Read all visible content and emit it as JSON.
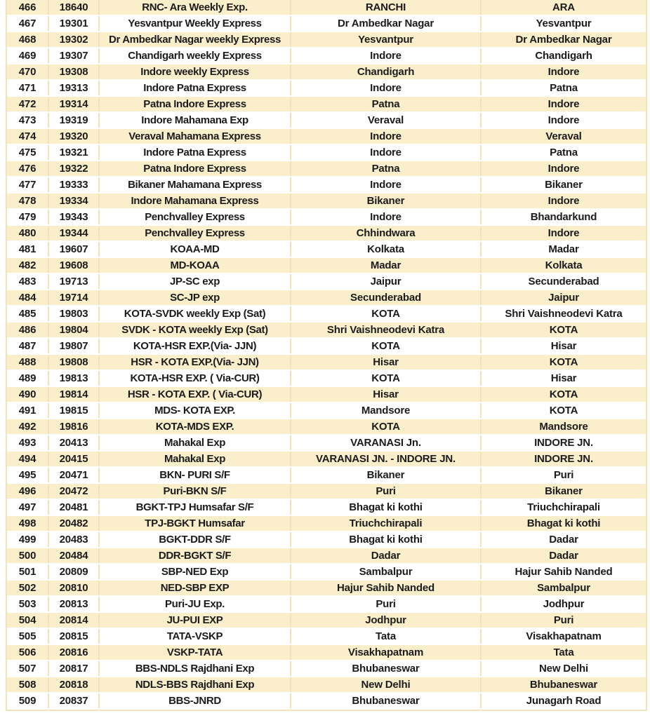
{
  "colors": {
    "row_highlight": "#FBEECB",
    "row_plain": "#FFFFFF",
    "grid_line": "#EFE3BC",
    "text": "#1B1B1B"
  },
  "table": {
    "rows": [
      [
        "466",
        "18640",
        "RNC- Ara Weekly Exp.",
        "RANCHI",
        "ARA"
      ],
      [
        "467",
        "19301",
        "Yesvantpur Weekly Express",
        "Dr Ambedkar Nagar",
        "Yesvantpur"
      ],
      [
        "468",
        "19302",
        "Dr Ambedkar Nagar weekly Express",
        "Yesvantpur",
        "Dr Ambedkar Nagar"
      ],
      [
        "469",
        "19307",
        "Chandigarh weekly Express",
        "Indore",
        "Chandigarh"
      ],
      [
        "470",
        "19308",
        "Indore weekly Express",
        "Chandigarh",
        "Indore"
      ],
      [
        "471",
        "19313",
        "Indore Patna Express",
        "Indore",
        "Patna"
      ],
      [
        "472",
        "19314",
        "Patna Indore Express",
        "Patna",
        "Indore"
      ],
      [
        "473",
        "19319",
        "Indore Mahamana Exp",
        "Veraval",
        "Indore"
      ],
      [
        "474",
        "19320",
        "Veraval Mahamana Express",
        "Indore",
        "Veraval"
      ],
      [
        "475",
        "19321",
        "Indore Patna Express",
        "Indore",
        "Patna"
      ],
      [
        "476",
        "19322",
        "Patna Indore Express",
        "Patna",
        "Indore"
      ],
      [
        "477",
        "19333",
        "Bikaner Mahamana Express",
        "Indore",
        "Bikaner"
      ],
      [
        "478",
        "19334",
        "Indore Mahamana Express",
        "Bikaner",
        "Indore"
      ],
      [
        "479",
        "19343",
        "Penchvalley Express",
        "Indore",
        "Bhandarkund"
      ],
      [
        "480",
        "19344",
        "Penchvalley Express",
        "Chhindwara",
        "Indore"
      ],
      [
        "481",
        "19607",
        "KOAA-MD",
        "Kolkata",
        "Madar"
      ],
      [
        "482",
        "19608",
        "MD-KOAA",
        "Madar",
        "Kolkata"
      ],
      [
        "483",
        "19713",
        "JP-SC exp",
        "Jaipur",
        "Secunderabad"
      ],
      [
        "484",
        "19714",
        "SC-JP exp",
        "Secunderabad",
        "Jaipur"
      ],
      [
        "485",
        "19803",
        "KOTA-SVDK weekly Exp (Sat)",
        "KOTA",
        "Shri Vaishneodevi Katra"
      ],
      [
        "486",
        "19804",
        "SVDK - KOTA weekly Exp (Sat)",
        "Shri Vaishneodevi Katra",
        "KOTA"
      ],
      [
        "487",
        "19807",
        "KOTA-HSR EXP.(Via- JJN)",
        "KOTA",
        "Hisar"
      ],
      [
        "488",
        "19808",
        "HSR - KOTA EXP.(Via- JJN)",
        "Hisar",
        "KOTA"
      ],
      [
        "489",
        "19813",
        "KOTA-HSR EXP. ( Via-CUR)",
        "KOTA",
        "Hisar"
      ],
      [
        "490",
        "19814",
        "HSR - KOTA EXP. ( Via-CUR)",
        "Hisar",
        "KOTA"
      ],
      [
        "491",
        "19815",
        "MDS- KOTA EXP.",
        "Mandsore",
        "KOTA"
      ],
      [
        "492",
        "19816",
        "KOTA-MDS EXP.",
        "KOTA",
        "Mandsore"
      ],
      [
        "493",
        "20413",
        "Mahakal Exp",
        "VARANASI Jn.",
        "INDORE JN."
      ],
      [
        "494",
        "20415",
        "Mahakal Exp",
        "VARANASI JN. - INDORE JN.",
        "INDORE JN."
      ],
      [
        "495",
        "20471",
        "BKN- PURI S/F",
        "Bikaner",
        "Puri"
      ],
      [
        "496",
        "20472",
        "Puri-BKN S/F",
        "Puri",
        "Bikaner"
      ],
      [
        "497",
        "20481",
        "BGKT-TPJ Humsafar S/F",
        "Bhagat ki kothi",
        "Triuchchirapali"
      ],
      [
        "498",
        "20482",
        "TPJ-BGKT Humsafar",
        "Triuchchirapali",
        "Bhagat ki kothi"
      ],
      [
        "499",
        "20483",
        "BGKT-DDR S/F",
        "Bhagat ki kothi",
        "Dadar"
      ],
      [
        "500",
        "20484",
        "DDR-BGKT S/F",
        "Dadar",
        "Dadar"
      ],
      [
        "501",
        "20809",
        "SBP-NED Exp",
        "Sambalpur",
        "Hajur Sahib Nanded"
      ],
      [
        "502",
        "20810",
        "NED-SBP EXP",
        "Hajur Sahib Nanded",
        "Sambalpur"
      ],
      [
        "503",
        "20813",
        "Puri-JU Exp.",
        "Puri",
        "Jodhpur"
      ],
      [
        "504",
        "20814",
        "JU-PUI EXP",
        "Jodhpur",
        "Puri"
      ],
      [
        "505",
        "20815",
        "TATA-VSKP",
        "Tata",
        "Visakhapatnam"
      ],
      [
        "506",
        "20816",
        "VSKP-TATA",
        "Visakhapatnam",
        "Tata"
      ],
      [
        "507",
        "20817",
        "BBS-NDLS Rajdhani Exp",
        "Bhubaneswar",
        "New Delhi"
      ],
      [
        "508",
        "20818",
        "NDLS-BBS Rajdhani Exp",
        "New Delhi",
        "Bhubaneswar"
      ],
      [
        "509",
        "20837",
        "BBS-JNRD",
        "Bhubaneswar",
        "Junagarh Road"
      ]
    ]
  }
}
